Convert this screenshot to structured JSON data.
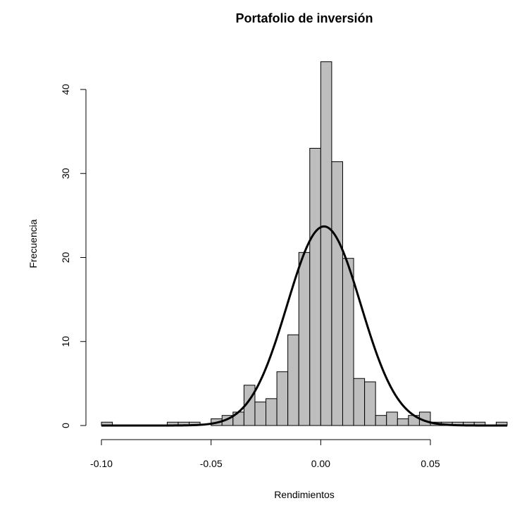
{
  "chart_data": {
    "type": "histogram",
    "title": "Portafolio de inversión",
    "xlabel": "Rendimientos",
    "ylabel": "Frecuencia",
    "xlim": [
      -0.1,
      0.085
    ],
    "ylim": [
      0,
      45
    ],
    "x_ticks": [
      -0.1,
      -0.05,
      0.0,
      0.05
    ],
    "x_tick_labels": [
      "-0.10",
      "-0.05",
      "0.00",
      "0.05"
    ],
    "y_ticks": [
      0,
      10,
      20,
      30,
      40
    ],
    "y_tick_labels": [
      "0",
      "10",
      "20",
      "30",
      "40"
    ],
    "bar_color": "#bebebe",
    "bin_width": 0.005,
    "bin_edges": [
      -0.1,
      -0.095,
      -0.09,
      -0.085,
      -0.08,
      -0.075,
      -0.07,
      -0.065,
      -0.06,
      -0.055,
      -0.05,
      -0.045,
      -0.04,
      -0.035,
      -0.03,
      -0.025,
      -0.02,
      -0.015,
      -0.01,
      -0.005,
      0.0,
      0.005,
      0.01,
      0.015,
      0.02,
      0.025,
      0.03,
      0.035,
      0.04,
      0.045,
      0.05,
      0.055,
      0.06,
      0.065,
      0.07,
      0.075,
      0.08,
      0.085
    ],
    "values": [
      0.4,
      0,
      0,
      0,
      0,
      0,
      0.4,
      0.4,
      0.4,
      0,
      0.8,
      1.2,
      1.6,
      4.8,
      2.8,
      3.2,
      6.4,
      10.8,
      20.6,
      33.0,
      43.3,
      31.4,
      19.9,
      5.6,
      5.2,
      1.2,
      1.6,
      0.8,
      1.2,
      1.6,
      0.4,
      0.4,
      0.4,
      0.4,
      0.4,
      0,
      0.4
    ],
    "density_curve": {
      "type": "normal",
      "mean": 0.0015,
      "sd": 0.0168,
      "peak": 23.7,
      "color": "#000000"
    },
    "grid": false
  }
}
